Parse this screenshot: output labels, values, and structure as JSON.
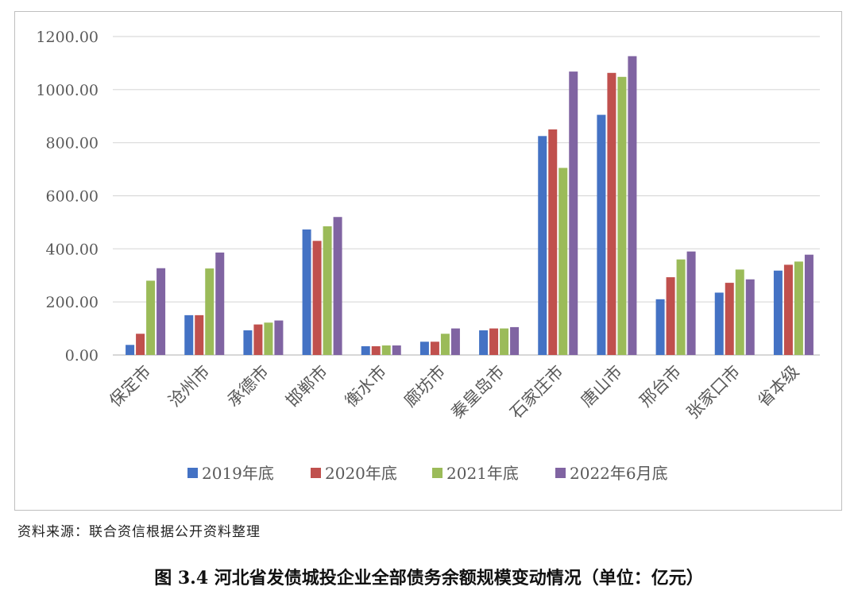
{
  "chart_data": {
    "type": "bar",
    "title": "",
    "xlabel": "",
    "ylabel": "",
    "ylim": [
      0,
      1200
    ],
    "yticks": [
      "0.00",
      "200.00",
      "400.00",
      "600.00",
      "800.00",
      "1000.00",
      "1200.00"
    ],
    "grid": "horizontal",
    "legend_position": "bottom",
    "categories": [
      "保定市",
      "沧州市",
      "承德市",
      "邯郸市",
      "衡水市",
      "廊坊市",
      "秦皇岛市",
      "石家庄市",
      "唐山市",
      "邢台市",
      "张家口市",
      "省本级"
    ],
    "series": [
      {
        "name": "2019年底",
        "color": "#4472C4",
        "values": [
          38,
          150,
          93,
          473,
          33,
          50,
          93,
          825,
          905,
          210,
          235,
          318
        ]
      },
      {
        "name": "2020年底",
        "color": "#C0504D",
        "values": [
          80,
          150,
          115,
          430,
          33,
          50,
          100,
          850,
          1063,
          293,
          272,
          340
        ]
      },
      {
        "name": "2021年底",
        "color": "#9BBB59",
        "values": [
          280,
          326,
          122,
          485,
          36,
          80,
          100,
          705,
          1048,
          360,
          322,
          352
        ]
      },
      {
        "name": "2022年6月底",
        "color": "#8064A2",
        "values": [
          327,
          386,
          130,
          520,
          36,
          100,
          105,
          1068,
          1126,
          390,
          285,
          378
        ]
      }
    ]
  },
  "source_text": "资料来源：联合资信根据公开资料整理",
  "caption": "图 3.4   河北省发债城投企业全部债务余额规模变动情况（单位：亿元）"
}
